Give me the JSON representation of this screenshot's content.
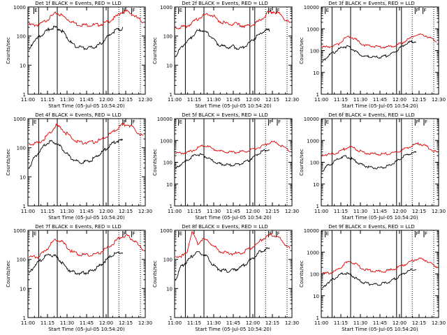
{
  "figure": {
    "xlabel": "Start Time (05-Jul-05 10:54:20)",
    "ylabel": "Counts/sec"
  },
  "colors": {
    "events": "#000000",
    "lld": "#e00000",
    "axis": "#000000"
  },
  "chart_data": [
    {
      "type": "line",
      "title": "Det 1f BLACK = Events, RED = LLD",
      "decades": "1-1000",
      "xticks": [
        "11:00",
        "11:15",
        "11:30",
        "11:45",
        "12:00",
        "12:15",
        "12:30"
      ],
      "yticks": [
        "1",
        "10",
        "100",
        "1000"
      ],
      "flags": [
        [
          "E",
          0.3
        ],
        [
          "F",
          4.85
        ],
        [
          "F",
          5.3
        ]
      ],
      "vlines": [
        0.55,
        1.5,
        3.85,
        4.1
      ],
      "vdots": [
        4.65,
        5.75
      ],
      "series": [
        {
          "name": "LLD",
          "color": "#e00000",
          "values": [
            240,
            240,
            250,
            330,
            460,
            620,
            520,
            390,
            300,
            250,
            240,
            240,
            240,
            250,
            280,
            350,
            460,
            680,
            700,
            560,
            400,
            300
          ]
        },
        {
          "name": "Events",
          "color": "#000000",
          "values": [
            30,
            70,
            90,
            130,
            180,
            200,
            170,
            110,
            60,
            45,
            40,
            38,
            40,
            45,
            60,
            90,
            130,
            170,
            180
          ]
        }
      ]
    },
    {
      "type": "line",
      "title": "Det 2f BLACK = Events, RED = LLD",
      "decades": "1-1000",
      "xticks": [
        "11:00",
        "11:15",
        "11:30",
        "11:45",
        "12:00",
        "12:15",
        "12:30"
      ],
      "yticks": [
        "1",
        "10",
        "100",
        "1000"
      ],
      "flags": [
        [
          "E",
          0.2
        ],
        [
          "F",
          4.8
        ],
        [
          "F",
          5.2
        ]
      ],
      "vlines": [
        0.55,
        1.5,
        3.85,
        4.1
      ],
      "vdots": [
        4.65,
        5.75
      ],
      "series": [
        {
          "name": "LLD",
          "color": "#e00000",
          "values": [
            200,
            200,
            210,
            280,
            380,
            500,
            600,
            480,
            330,
            280,
            250,
            260,
            230,
            220,
            240,
            300,
            420,
            650,
            700,
            600,
            400,
            270
          ]
        },
        {
          "name": "Events",
          "color": "#000000",
          "values": [
            20,
            40,
            60,
            90,
            140,
            160,
            130,
            90,
            55,
            45,
            40,
            45,
            38,
            40,
            55,
            80,
            110,
            150,
            160
          ]
        }
      ]
    },
    {
      "type": "line",
      "title": "Det 3f BLACK = Events, RED = LLD",
      "decades": "1-10000",
      "xticks": [
        "11:00",
        "11:15",
        "11:30",
        "11:45",
        "12:00",
        "12:15",
        "12:30"
      ],
      "yticks": [
        "1",
        "10",
        "100",
        "1000",
        "10000"
      ],
      "flags": [
        [
          "E",
          0.2
        ],
        [
          "F",
          4.8
        ],
        [
          "F",
          5.2
        ]
      ],
      "vlines": [
        0.55,
        1.5,
        3.85,
        4.1
      ],
      "vdots": [
        4.65,
        5.75
      ],
      "series": [
        {
          "name": "LLD",
          "color": "#e00000",
          "values": [
            140,
            150,
            160,
            200,
            350,
            440,
            350,
            220,
            170,
            160,
            150,
            150,
            150,
            160,
            190,
            250,
            350,
            500,
            550,
            480,
            350,
            250
          ]
        },
        {
          "name": "Events",
          "color": "#000000",
          "values": [
            30,
            55,
            75,
            110,
            150,
            150,
            110,
            70,
            55,
            52,
            50,
            50,
            55,
            65,
            90,
            140,
            200,
            250,
            270
          ]
        }
      ]
    },
    {
      "type": "line",
      "title": "Det 4f BLACK = Events, RED = LLD",
      "decades": "1-1000",
      "xticks": [
        "11:00",
        "11:15",
        "11:30",
        "11:45",
        "12:00",
        "12:15",
        "12:30"
      ],
      "yticks": [
        "1",
        "10",
        "100",
        "1000"
      ],
      "flags": [
        [
          "E",
          0.25
        ],
        [
          "F",
          4.85
        ],
        [
          "F",
          5.3
        ]
      ],
      "vlines": [
        0.55,
        1.5,
        3.85,
        4.1
      ],
      "vdots": [
        4.65,
        5.75
      ],
      "series": [
        {
          "name": "LLD",
          "color": "#e00000",
          "values": [
            130,
            140,
            150,
            220,
            350,
            580,
            450,
            300,
            200,
            160,
            150,
            150,
            160,
            180,
            230,
            300,
            420,
            600,
            650,
            500,
            330,
            240
          ]
        },
        {
          "name": "Events",
          "color": "#000000",
          "values": [
            20,
            45,
            75,
            120,
            160,
            150,
            110,
            70,
            45,
            35,
            32,
            33,
            38,
            50,
            70,
            100,
            140,
            170,
            180
          ]
        }
      ]
    },
    {
      "type": "line",
      "title": "Det 5f BLACK = Events, RED = LLD",
      "decades": "1-10000",
      "xticks": [
        "11:00",
        "11:15",
        "11:30",
        "11:45",
        "12:00",
        "12:15",
        "12:30"
      ],
      "yticks": [
        "1",
        "10",
        "100",
        "1000",
        "10000"
      ],
      "flags": [
        [
          "E",
          0.2
        ],
        [
          "F",
          4.8
        ],
        [
          "F",
          5.25
        ]
      ],
      "vlines": [
        0.55,
        1.5,
        3.85,
        4.1
      ],
      "vdots": [
        4.65,
        5.75
      ],
      "series": [
        {
          "name": "LLD",
          "color": "#e00000",
          "values": [
            260,
            270,
            280,
            330,
            450,
            600,
            520,
            400,
            330,
            300,
            290,
            290,
            300,
            320,
            370,
            450,
            550,
            750,
            850,
            650,
            450,
            330
          ]
        },
        {
          "name": "Events",
          "color": "#000000",
          "values": [
            50,
            80,
            110,
            170,
            230,
            220,
            170,
            120,
            90,
            80,
            75,
            75,
            80,
            95,
            120,
            180,
            260,
            350,
            400
          ]
        }
      ]
    },
    {
      "type": "line",
      "title": "Det 6f BLACK = Events, RED = LLD",
      "decades": "1-10000",
      "xticks": [
        "11:00",
        "11:15",
        "11:30",
        "11:45",
        "12:00",
        "12:15",
        "12:30"
      ],
      "yticks": [
        "1",
        "10",
        "100",
        "1000",
        "10000"
      ],
      "flags": [
        [
          "E",
          0.2
        ],
        [
          "F",
          4.8
        ],
        [
          "F",
          5.25
        ]
      ],
      "vlines": [
        0.55,
        1.5,
        3.85,
        4.1
      ],
      "vdots": [
        4.65,
        5.75
      ],
      "series": [
        {
          "name": "LLD",
          "color": "#e00000",
          "values": [
            220,
            230,
            240,
            280,
            400,
            500,
            420,
            320,
            270,
            250,
            240,
            240,
            250,
            270,
            320,
            400,
            500,
            650,
            700,
            550,
            380,
            280
          ]
        },
        {
          "name": "Events",
          "color": "#000000",
          "values": [
            40,
            70,
            95,
            140,
            190,
            170,
            130,
            90,
            70,
            60,
            55,
            55,
            60,
            75,
            100,
            150,
            210,
            260,
            280
          ]
        }
      ]
    },
    {
      "type": "line",
      "title": "Det 7f BLACK = Events, RED = LLD",
      "decades": "1-1000",
      "xticks": [
        "11:00",
        "11:15",
        "11:30",
        "11:45",
        "12:00",
        "12:15",
        "12:30"
      ],
      "yticks": [
        "1",
        "10",
        "100",
        "1000"
      ],
      "flags": [
        [
          "E",
          0.25
        ],
        [
          "F",
          4.85
        ],
        [
          "F",
          5.3
        ]
      ],
      "vlines": [
        0.55,
        1.5,
        3.85,
        4.1
      ],
      "vdots": [
        4.65,
        5.75
      ],
      "series": [
        {
          "name": "LLD",
          "color": "#e00000",
          "values": [
            120,
            120,
            130,
            200,
            330,
            500,
            420,
            260,
            180,
            150,
            140,
            140,
            150,
            170,
            220,
            300,
            430,
            620,
            650,
            500,
            320,
            220
          ]
        },
        {
          "name": "Events",
          "color": "#000000",
          "values": [
            30,
            60,
            85,
            120,
            150,
            130,
            90,
            55,
            40,
            35,
            33,
            35,
            40,
            50,
            70,
            100,
            140,
            170,
            180
          ]
        }
      ]
    },
    {
      "type": "line",
      "title": "Det 8f BLACK = Events, RED = LLD",
      "decades": "1-1000",
      "xticks": [
        "11:00",
        "11:15",
        "11:30",
        "11:45",
        "12:00",
        "12:15",
        "12:30"
      ],
      "yticks": [
        "1",
        "10",
        "100",
        "1000"
      ],
      "flags": [
        [
          "E",
          0.2
        ],
        [
          "F",
          4.8
        ],
        [
          "F",
          5.2
        ]
      ],
      "vlines": [
        0.55,
        1.5,
        3.85,
        4.1
      ],
      "vdots": [
        4.65,
        5.75
      ],
      "series": [
        {
          "name": "LLD",
          "color": "#e00000",
          "values": [
            130,
            130,
            150,
            900,
            350,
            500,
            420,
            280,
            200,
            170,
            160,
            160,
            170,
            200,
            260,
            350,
            500,
            650,
            700,
            550,
            350,
            230
          ]
        },
        {
          "name": "Events",
          "color": "#000000",
          "values": [
            20,
            55,
            80,
            120,
            180,
            160,
            120,
            70,
            50,
            42,
            40,
            42,
            48,
            60,
            85,
            120,
            170,
            220,
            230
          ]
        }
      ]
    },
    {
      "type": "line",
      "title": "Det 9f BLACK = Events, RED = LLD",
      "decades": "1-10000",
      "xticks": [
        "11:00",
        "11:15",
        "11:30",
        "11:45",
        "12:00",
        "12:15",
        "12:30"
      ],
      "yticks": [
        "1",
        "10",
        "100",
        "1000",
        "10000"
      ],
      "flags": [
        [
          "E",
          0.2
        ],
        [
          "F",
          4.8
        ],
        [
          "F",
          5.25
        ]
      ],
      "vlines": [
        0.55,
        1.5,
        3.85,
        4.1
      ],
      "vdots": [
        4.65,
        5.75
      ],
      "series": [
        {
          "name": "LLD",
          "color": "#e00000",
          "values": [
            100,
            110,
            120,
            160,
            280,
            380,
            300,
            200,
            150,
            140,
            130,
            130,
            140,
            160,
            200,
            260,
            350,
            450,
            500,
            420,
            300,
            210
          ]
        },
        {
          "name": "Events",
          "color": "#000000",
          "values": [
            20,
            40,
            55,
            80,
            110,
            100,
            75,
            50,
            40,
            35,
            33,
            34,
            38,
            45,
            60,
            85,
            120,
            150,
            160
          ]
        }
      ]
    }
  ]
}
